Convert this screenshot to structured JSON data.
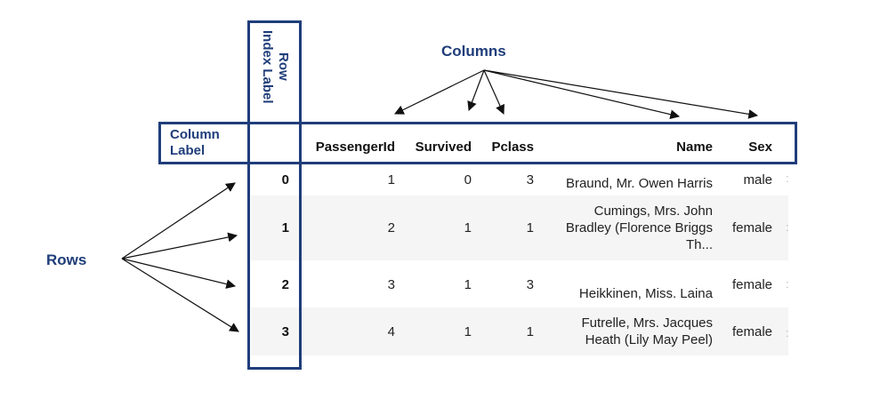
{
  "annotations": {
    "columns_label": "Columns",
    "rows_label": "Rows",
    "row_index_label_line1": "Row",
    "row_index_label_line2": "Index Label",
    "column_label_line1": "Column",
    "column_label_line2": "Label"
  },
  "table": {
    "headers": [
      "PassengerId",
      "Survived",
      "Pclass",
      "Name",
      "Sex"
    ],
    "rows": [
      {
        "index": "0",
        "passenger_id": "1",
        "survived": "0",
        "pclass": "3",
        "name_lines": [
          "Braund, Mr. Owen Harris"
        ],
        "sex": "male",
        "more": ":"
      },
      {
        "index": "1",
        "passenger_id": "2",
        "survived": "1",
        "pclass": "1",
        "name_lines": [
          "Cumings, Mrs. John",
          "Bradley (Florence Briggs",
          "Th..."
        ],
        "sex": "female",
        "more": ":"
      },
      {
        "index": "2",
        "passenger_id": "3",
        "survived": "1",
        "pclass": "3",
        "name_lines": [
          "Heikkinen, Miss. Laina"
        ],
        "sex": "female",
        "more": ":"
      },
      {
        "index": "3",
        "passenger_id": "4",
        "survived": "1",
        "pclass": "1",
        "name_lines": [
          "Futrelle, Mrs. Jacques",
          "Heath (Lily May Peel)"
        ],
        "sex": "female",
        "more": ":"
      }
    ]
  },
  "colors": {
    "annotation": "#1f3d7a",
    "row_shade": "#f5f5f5",
    "arrow": "#111111"
  }
}
